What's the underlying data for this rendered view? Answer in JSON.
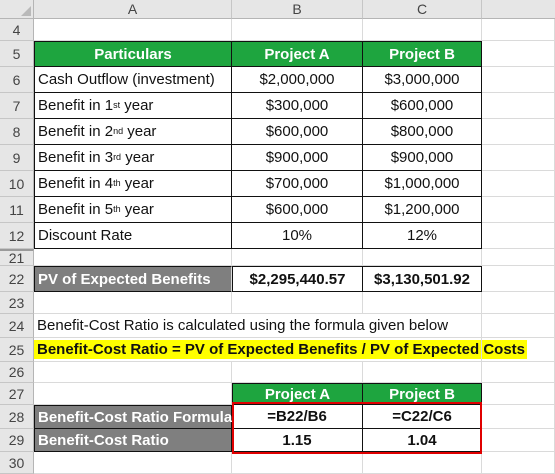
{
  "columns": [
    "A",
    "B",
    "C"
  ],
  "rows": {
    "r4": {
      "num": "4"
    },
    "r5": {
      "num": "5",
      "a": "Particulars",
      "b": "Project A",
      "c": "Project B"
    },
    "r6": {
      "num": "6",
      "a": "Cash Outflow (investment)",
      "b": "$2,000,000",
      "c": "$3,000,000"
    },
    "r7": {
      "num": "7",
      "a": "Benefit in 1",
      "sup": "st",
      "a2": " year",
      "b": "$300,000",
      "c": "$600,000"
    },
    "r8": {
      "num": "8",
      "a": "Benefit in 2",
      "sup": "nd",
      "a2": " year",
      "b": "$600,000",
      "c": "$800,000"
    },
    "r9": {
      "num": "9",
      "a": "Benefit in 3",
      "sup": "rd",
      "a2": " year",
      "b": "$900,000",
      "c": "$900,000"
    },
    "r10": {
      "num": "10",
      "a": "Benefit in 4",
      "sup": "th",
      "a2": " year",
      "b": "$700,000",
      "c": "$1,000,000"
    },
    "r11": {
      "num": "11",
      "a": "Benefit in 5",
      "sup": "th",
      "a2": " year",
      "b": "$600,000",
      "c": "$1,200,000"
    },
    "r12": {
      "num": "12",
      "a": "Discount Rate",
      "b": "10%",
      "c": "12%"
    },
    "r21": {
      "num": "21"
    },
    "r22": {
      "num": "22",
      "a": "PV of Expected Benefits",
      "b": "$2,295,440.57",
      "c": "$3,130,501.92"
    },
    "r23": {
      "num": "23"
    },
    "r24": {
      "num": "24",
      "a": "Benefit-Cost Ratio is calculated using the formula given below"
    },
    "r25": {
      "num": "25",
      "a": "Benefit-Cost Ratio = PV of Expected Benefits / PV of Expected Costs"
    },
    "r26": {
      "num": "26"
    },
    "r27": {
      "num": "27",
      "b": "Project A",
      "c": "Project B"
    },
    "r28": {
      "num": "28",
      "a": "Benefit-Cost Ratio Formula",
      "b": "=B22/B6",
      "c": "=C22/C6"
    },
    "r29": {
      "num": "29",
      "a": "Benefit-Cost Ratio",
      "b": "1.15",
      "c": "1.04"
    },
    "r30": {
      "num": "30"
    }
  },
  "colors": {
    "header_green": "#1ea53f",
    "label_gray": "#7f7f7f",
    "highlight_yellow": "#ffff00",
    "selection_red": "#e00000"
  }
}
